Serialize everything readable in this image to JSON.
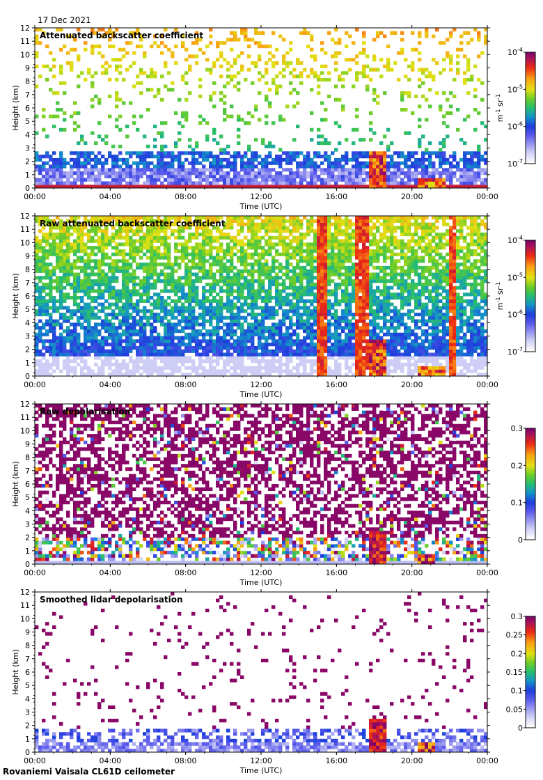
{
  "date": "17 Dec 2021",
  "footer": "Rovaniemi Vaisala CL61D ceilometer",
  "chart_data": [
    {
      "type": "heatmap",
      "title": "Attenuated backscatter coefficient",
      "xlabel": "Time (UTC)",
      "ylabel": "Height (km)",
      "xlim": [
        0,
        24
      ],
      "ylim": [
        0,
        12
      ],
      "x_ticks": [
        "00:00",
        "04:00",
        "08:00",
        "12:00",
        "16:00",
        "20:00",
        "00:00"
      ],
      "y_ticks": [
        "0",
        "1",
        "2",
        "3",
        "4",
        "5",
        "6",
        "7",
        "8",
        "9",
        "10",
        "11",
        "12"
      ],
      "colorbar": {
        "scale": "log",
        "range": [
          1e-07,
          0.0001
        ],
        "ticks": [
          {
            "base": "10",
            "exp": "-4",
            "frac": 1.0
          },
          {
            "base": "10",
            "exp": "-5",
            "frac": 0.6667
          },
          {
            "base": "10",
            "exp": "-6",
            "frac": 0.3333
          },
          {
            "base": "10",
            "exp": "-7",
            "frac": 0.0
          }
        ],
        "units": [
          {
            "t": "m"
          },
          {
            "t": "-1",
            "sup": true
          },
          {
            "t": " sr"
          },
          {
            "t": "-1",
            "sup": true
          }
        ]
      }
    },
    {
      "type": "heatmap",
      "title": "Raw attenuated backscatter coefficient",
      "xlabel": "Time (UTC)",
      "ylabel": "Height (km)",
      "xlim": [
        0,
        24
      ],
      "ylim": [
        0,
        12
      ],
      "x_ticks": [
        "00:00",
        "04:00",
        "08:00",
        "12:00",
        "16:00",
        "20:00",
        "00:00"
      ],
      "y_ticks": [
        "0",
        "1",
        "2",
        "3",
        "4",
        "5",
        "6",
        "7",
        "8",
        "9",
        "10",
        "11",
        "12"
      ],
      "colorbar": {
        "scale": "log",
        "range": [
          1e-07,
          0.0001
        ],
        "ticks": [
          {
            "base": "10",
            "exp": "-4",
            "frac": 1.0
          },
          {
            "base": "10",
            "exp": "-5",
            "frac": 0.6667
          },
          {
            "base": "10",
            "exp": "-6",
            "frac": 0.3333
          },
          {
            "base": "10",
            "exp": "-7",
            "frac": 0.0
          }
        ],
        "units": [
          {
            "t": "m"
          },
          {
            "t": "-1",
            "sup": true
          },
          {
            "t": " sr"
          },
          {
            "t": "-1",
            "sup": true
          }
        ]
      }
    },
    {
      "type": "heatmap",
      "title": "Raw depolarisation",
      "xlabel": "Time (UTC)",
      "ylabel": "Height (km)",
      "xlim": [
        0,
        24
      ],
      "ylim": [
        0,
        12
      ],
      "x_ticks": [
        "00:00",
        "04:00",
        "08:00",
        "12:00",
        "16:00",
        "20:00",
        "00:00"
      ],
      "y_ticks": [
        "0",
        "1",
        "2",
        "3",
        "4",
        "5",
        "6",
        "7",
        "8",
        "9",
        "10",
        "11",
        "12"
      ],
      "colorbar": {
        "scale": "linear",
        "range": [
          0,
          0.3
        ],
        "ticks": [
          {
            "label": "0.3",
            "frac": 1.0
          },
          {
            "label": "0.2",
            "frac": 0.6667
          },
          {
            "label": "0.1",
            "frac": 0.3333
          },
          {
            "label": "0",
            "frac": 0.0
          }
        ],
        "units": []
      }
    },
    {
      "type": "heatmap",
      "title": "Smoothed lidar depolarisation",
      "xlabel": "Time (UTC)",
      "ylabel": "Height (km)",
      "xlim": [
        0,
        24
      ],
      "ylim": [
        0,
        12
      ],
      "x_ticks": [
        "00:00",
        "04:00",
        "08:00",
        "12:00",
        "16:00",
        "20:00",
        "00:00"
      ],
      "y_ticks": [
        "0",
        "1",
        "2",
        "3",
        "4",
        "5",
        "6",
        "7",
        "8",
        "9",
        "10",
        "11",
        "12"
      ],
      "colorbar": {
        "scale": "linear",
        "range": [
          0,
          0.3
        ],
        "ticks": [
          {
            "label": "0.3",
            "frac": 1.0
          },
          {
            "label": "0.25",
            "frac": 0.8333
          },
          {
            "label": "0.2",
            "frac": 0.6667
          },
          {
            "label": "0.15",
            "frac": 0.5
          },
          {
            "label": "0.1",
            "frac": 0.3333
          },
          {
            "label": "0.05",
            "frac": 0.1667
          },
          {
            "label": "0",
            "frac": 0.0
          }
        ],
        "units": []
      }
    }
  ]
}
